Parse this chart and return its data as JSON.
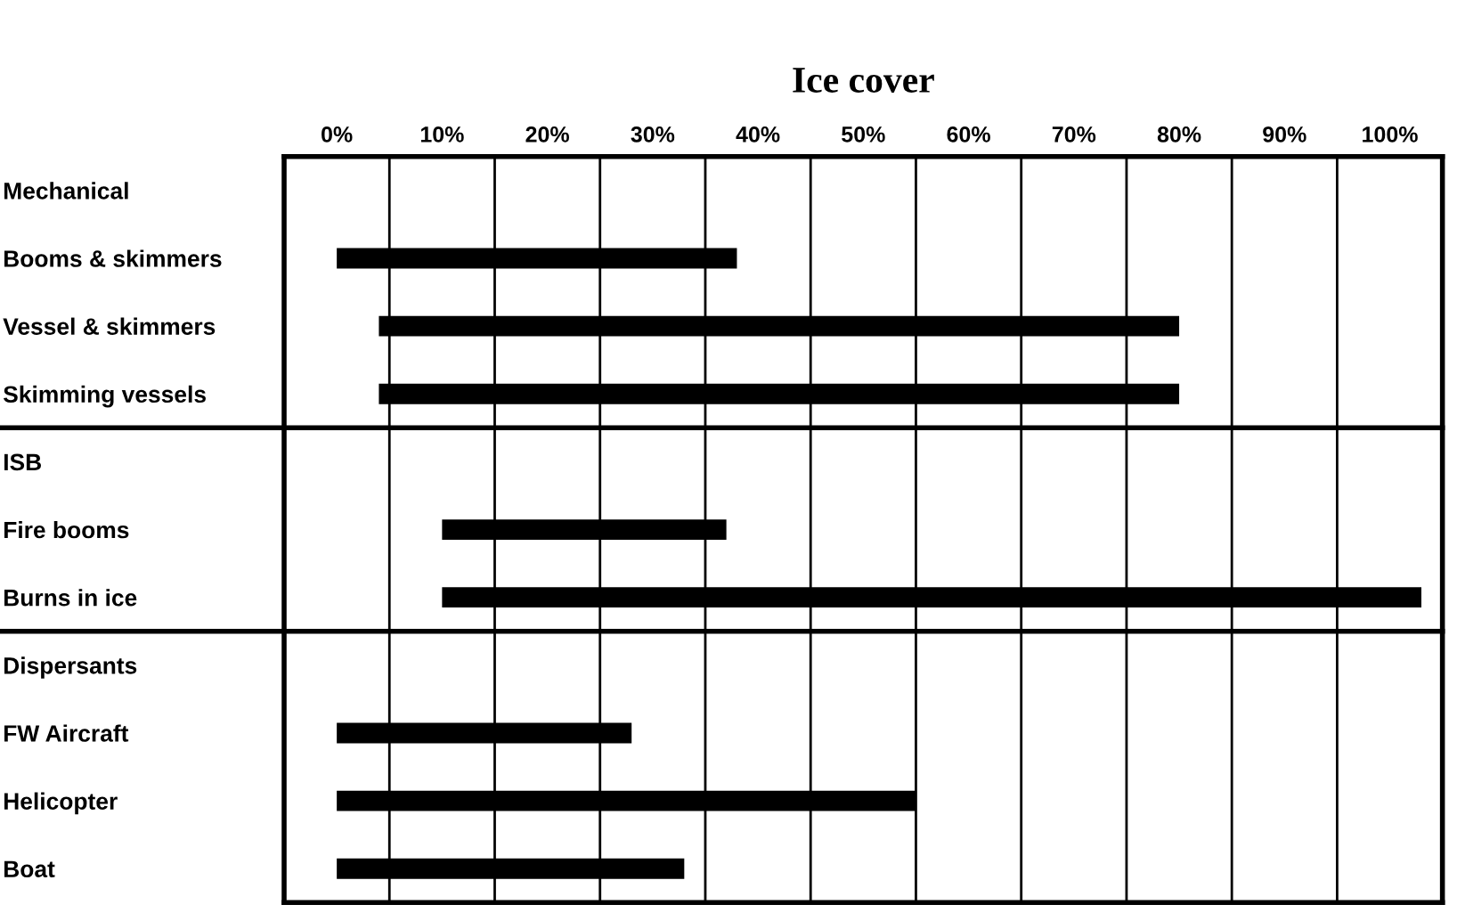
{
  "chart_data": {
    "type": "bar",
    "orientation": "horizontal",
    "title": "Ice cover",
    "categories": [
      "Mechanical",
      "Booms & skimmers",
      "Vessel & skimmers",
      "Skimming vessels",
      "ISB",
      "Fire booms",
      "Burns in ice",
      "Dispersants",
      "FW Aircraft",
      "Helicopter",
      "Boat"
    ],
    "base": [
      null,
      0,
      4,
      4,
      null,
      10,
      10,
      null,
      0,
      0,
      0
    ],
    "values": [
      null,
      38,
      76,
      76,
      null,
      27,
      93,
      null,
      28,
      55,
      33
    ],
    "color": "#000000",
    "xlim": [
      -5,
      105
    ],
    "xticks": [
      {
        "value": 0,
        "label": "0%"
      },
      {
        "value": 10,
        "label": "10%"
      },
      {
        "value": 20,
        "label": "20%"
      },
      {
        "value": 30,
        "label": "30%"
      },
      {
        "value": 40,
        "label": "40%"
      },
      {
        "value": 50,
        "label": "50%"
      },
      {
        "value": 60,
        "label": "60%"
      },
      {
        "value": 70,
        "label": "70%"
      },
      {
        "value": 80,
        "label": "80%"
      },
      {
        "value": 90,
        "label": "90%"
      },
      {
        "value": 100,
        "label": "100%"
      }
    ],
    "grid": "x"
  }
}
